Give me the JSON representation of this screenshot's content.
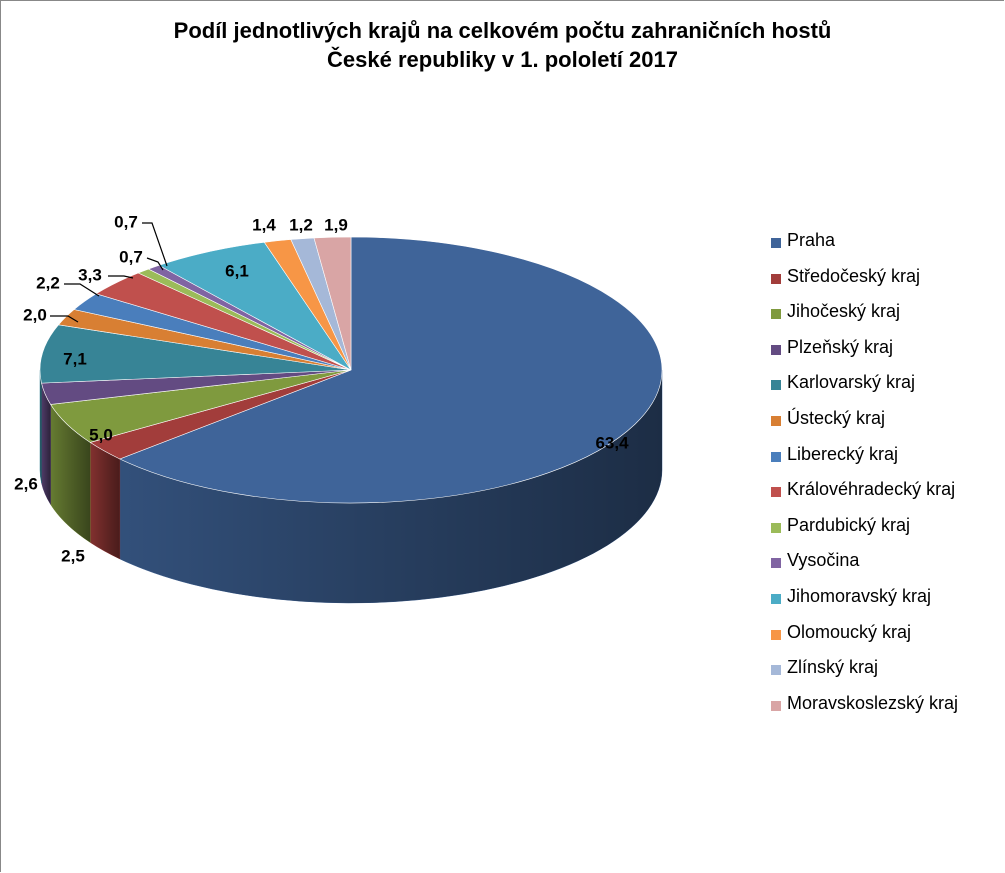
{
  "chart_data": {
    "type": "pie",
    "title_line1": "Podíl jednotlivých krajů na celkovém počtu zahraničních hostů",
    "title_line2": "České republiky v 1. pololetí 2017",
    "categories": [
      "Praha",
      "Středočeský kraj",
      "Jihočeský kraj",
      "Plzeňský kraj",
      "Karlovarský kraj",
      "Ústecký kraj",
      "Liberecký kraj",
      "Královéhradecký kraj",
      "Pardubický kraj",
      "Vysočina",
      "Jihomoravský kraj",
      "Olomoucký kraj",
      "Zlínský kraj",
      "Moravskoslezský kraj"
    ],
    "values": [
      63.4,
      2.5,
      5.0,
      2.6,
      7.1,
      2.0,
      2.2,
      3.3,
      0.7,
      0.7,
      6.1,
      1.4,
      1.2,
      1.9
    ],
    "value_labels": [
      "63,4",
      "2,5",
      "5,0",
      "2,6",
      "7,1",
      "2,0",
      "2,2",
      "3,3",
      "0,7",
      "0,7",
      "6,1",
      "1,4",
      "1,2",
      "1,9"
    ],
    "colors": [
      "#3F6499",
      "#A23D3B",
      "#7F9A3E",
      "#634B82",
      "#378496",
      "#D87F33",
      "#4A7EBC",
      "#C0504D",
      "#9BBB59",
      "#8064A2",
      "#4BACC6",
      "#F79646",
      "#A5B8D8",
      "#D9A5A5"
    ],
    "start_angle_deg": -90,
    "direction": "clockwise",
    "legend_position": "right",
    "style": "3d"
  }
}
